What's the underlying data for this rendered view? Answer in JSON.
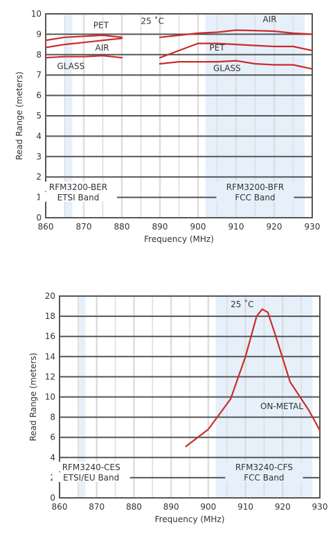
{
  "chart_data": [
    {
      "type": "line",
      "xlabel": "Frequency (MHz)",
      "ylabel": "Read Range (meters)",
      "xlim": [
        860,
        930
      ],
      "ylim": [
        0,
        10
      ],
      "x_ticks": [
        "860",
        "870",
        "880",
        "890",
        "900",
        "910",
        "920",
        "930"
      ],
      "y_ticks": [
        "0",
        "1",
        "2",
        "3",
        "4",
        "5",
        "6",
        "7",
        "8",
        "9",
        "10"
      ],
      "grid": true,
      "bands": [
        {
          "range": [
            865,
            867
          ],
          "labels": [
            "RFM3200-BER",
            "ETSI Band"
          ]
        },
        {
          "range": [
            902,
            928
          ],
          "labels": [
            "RFM3200-BFR",
            "FCC Band"
          ]
        }
      ],
      "annotations": [
        {
          "text": "25 ˚C",
          "x": 885,
          "y": 9.5
        },
        {
          "text": "PET",
          "x": 872.5,
          "y": 9.3
        },
        {
          "text": "AIR",
          "x": 873,
          "y": 8.2
        },
        {
          "text": "GLASS",
          "x": 863,
          "y": 7.3
        },
        {
          "text": "AIR",
          "x": 917,
          "y": 9.6
        },
        {
          "text": "PET",
          "x": 903,
          "y": 8.2
        },
        {
          "text": "GLASS",
          "x": 904,
          "y": 7.2
        }
      ],
      "series": [
        {
          "x": [
            860,
            865,
            870,
            875,
            880
          ],
          "y": [
            8.7,
            8.85,
            8.9,
            8.95,
            8.85
          ]
        },
        {
          "x": [
            860,
            865,
            870,
            875,
            880
          ],
          "y": [
            8.35,
            8.5,
            8.6,
            8.7,
            8.8
          ]
        },
        {
          "x": [
            860,
            865,
            870,
            875,
            880
          ],
          "y": [
            7.85,
            7.9,
            7.9,
            7.95,
            7.85
          ]
        },
        {
          "x": [
            890,
            895,
            900,
            905,
            910,
            915,
            920,
            925,
            930
          ],
          "y": [
            8.85,
            8.95,
            9.05,
            9.1,
            9.2,
            9.18,
            9.15,
            9.05,
            9.0
          ]
        },
        {
          "x": [
            890,
            895,
            900,
            905,
            910,
            915,
            920,
            925,
            930
          ],
          "y": [
            7.85,
            8.2,
            8.55,
            8.55,
            8.5,
            8.45,
            8.4,
            8.4,
            8.2
          ]
        },
        {
          "x": [
            890,
            895,
            900,
            905,
            910,
            915,
            920,
            925,
            930
          ],
          "y": [
            7.55,
            7.65,
            7.65,
            7.65,
            7.7,
            7.55,
            7.5,
            7.5,
            7.3
          ]
        }
      ]
    },
    {
      "type": "line",
      "xlabel": "Frequency (MHz)",
      "ylabel": "Read Range (meters)",
      "xlim": [
        860,
        930
      ],
      "ylim": [
        0,
        20
      ],
      "x_ticks": [
        "860",
        "870",
        "880",
        "890",
        "900",
        "910",
        "920",
        "930"
      ],
      "y_ticks": [
        "0",
        "2",
        "4",
        "6",
        "8",
        "10",
        "12",
        "14",
        "16",
        "18",
        "20"
      ],
      "grid": true,
      "bands": [
        {
          "range": [
            865,
            867
          ],
          "labels": [
            "RFM3240-CES",
            "ETSI/EU Band"
          ]
        },
        {
          "range": [
            902,
            928
          ],
          "labels": [
            "RFM3240-CFS",
            "FCC Band"
          ]
        }
      ],
      "annotations": [
        {
          "text": "25 ˚C",
          "x": 906,
          "y": 18.9
        },
        {
          "text": "ON-METAL",
          "x": 914,
          "y": 8.8
        }
      ],
      "series": [
        {
          "x": [
            894,
            900,
            906,
            910,
            913,
            914.5,
            916,
            918,
            922,
            927,
            930
          ],
          "y": [
            5.1,
            6.8,
            9.8,
            14.0,
            18.0,
            18.7,
            18.4,
            16.2,
            11.5,
            8.7,
            6.7
          ]
        }
      ]
    }
  ],
  "colors": {
    "series": "#cc2a2a",
    "band": "#e6f0fb",
    "grid_major": "#555555",
    "grid_light": "#dddddd"
  }
}
